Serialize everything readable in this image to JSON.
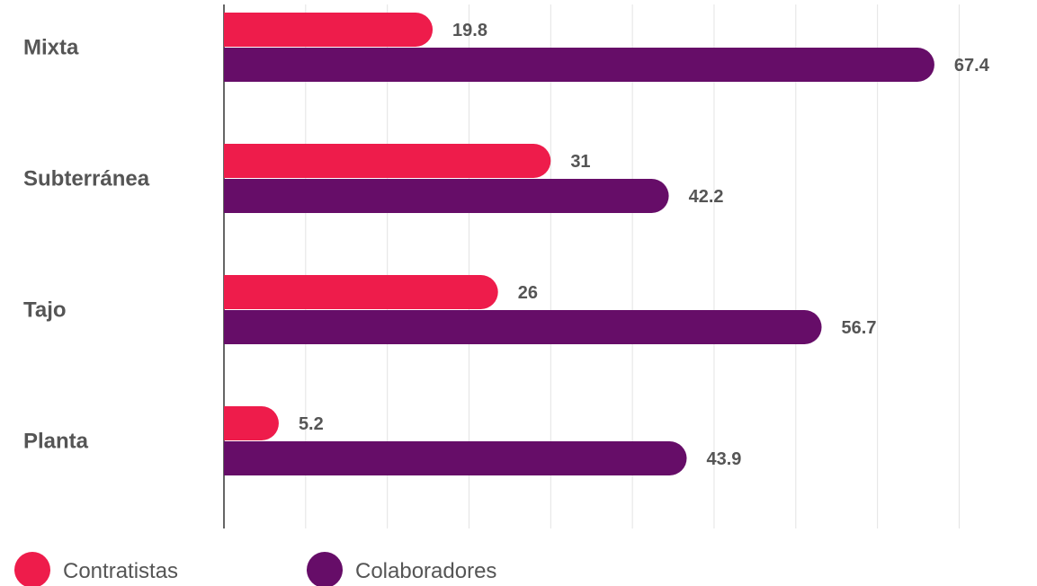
{
  "chart_data": {
    "type": "bar",
    "orientation": "horizontal",
    "categories": [
      "Mixta",
      "Subterránea",
      "Tajo",
      "Planta"
    ],
    "series": [
      {
        "name": "Contratistas",
        "values": [
          19.8,
          31,
          26,
          5.2
        ],
        "color": "#ee1c4b"
      },
      {
        "name": "Colaboradores",
        "values": [
          67.4,
          42.2,
          56.7,
          43.9
        ],
        "color": "#660d68"
      }
    ],
    "value_labels": [
      [
        "19.8",
        "31",
        "26",
        "5.2"
      ],
      [
        "67.4",
        "42.2",
        "56.7",
        "43.9"
      ]
    ],
    "xlim": [
      0,
      70
    ],
    "grid": true,
    "legend_position": "bottom-left"
  }
}
